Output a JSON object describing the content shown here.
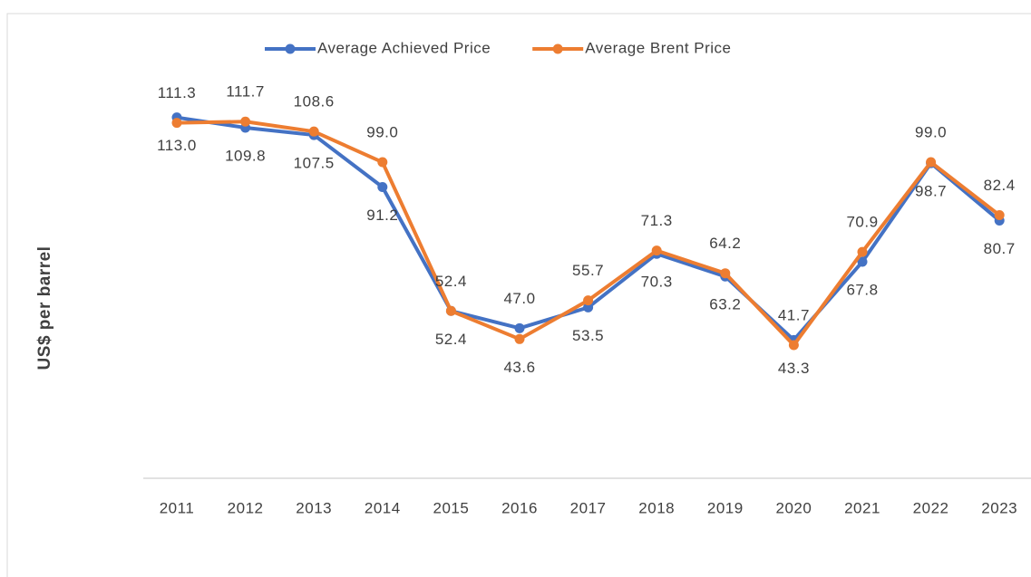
{
  "chart_data": {
    "type": "line",
    "y_label": "US$ per barrel",
    "categories": [
      "2011",
      "2012",
      "2013",
      "2014",
      "2015",
      "2016",
      "2017",
      "2018",
      "2019",
      "2020",
      "2021",
      "2022",
      "2023"
    ],
    "series": [
      {
        "name": "Average Achieved Price",
        "color": "#4472c4",
        "values": [
          113.0,
          109.8,
          107.5,
          91.2,
          52.4,
          47.0,
          53.5,
          70.3,
          63.2,
          43.3,
          67.8,
          98.7,
          80.7
        ],
        "value_labels": [
          "113.0",
          "109.8",
          "107.5",
          "91.2",
          "52.4",
          "47.0",
          "53.5",
          "70.3",
          "63.2",
          "43.3",
          "67.8",
          "98.7",
          "80.7"
        ]
      },
      {
        "name": "Average Brent Price",
        "color": "#ed7d31",
        "values": [
          111.3,
          111.7,
          108.6,
          99.0,
          52.4,
          43.6,
          55.7,
          71.3,
          64.2,
          41.7,
          70.9,
          99.0,
          82.4
        ],
        "value_labels": [
          "111.3",
          "111.7",
          "108.6",
          "99.0",
          "52.4",
          "43.6",
          "55.7",
          "71.3",
          "64.2",
          "41.7",
          "70.9",
          "99.0",
          "82.4"
        ]
      }
    ],
    "ylim": [
      0,
      120
    ],
    "legend": "top"
  }
}
